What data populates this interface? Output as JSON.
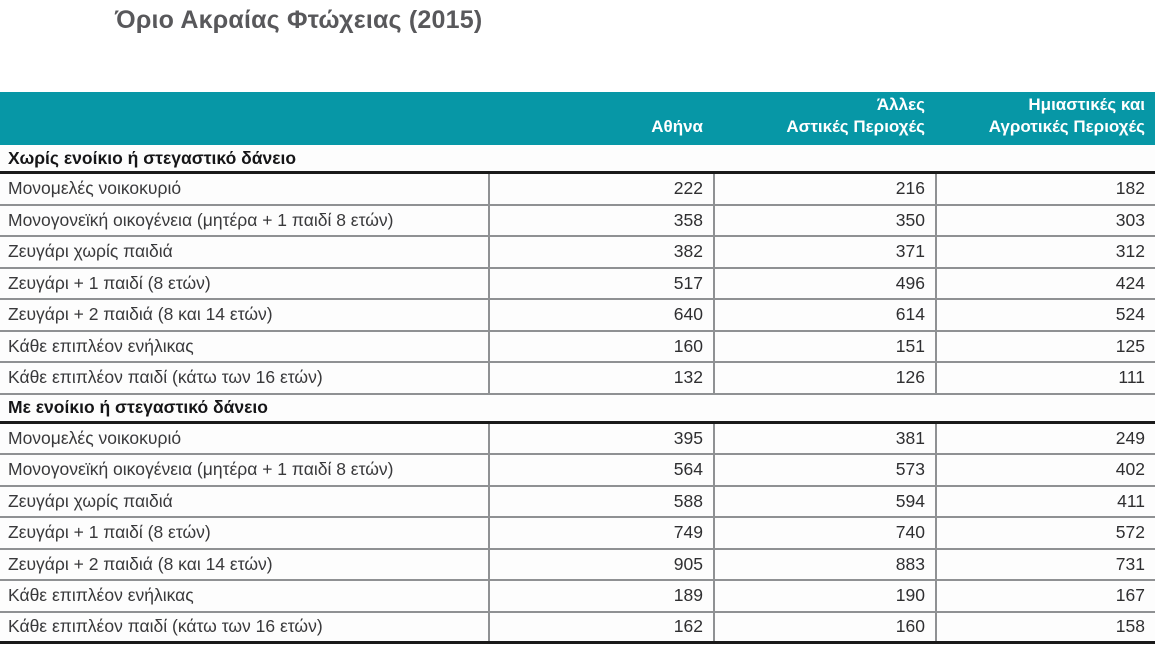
{
  "title": "Όριο Ακραίας Φτώχειας (2015)",
  "colors": {
    "accent_teal": "#0797a6",
    "header_text": "#ffffff",
    "title_text": "#58585b",
    "body_text": "#3e3e40",
    "border_gray": "#8f9193",
    "border_dark": "#1a1a1a"
  },
  "table": {
    "columns": [
      {
        "lines": [
          "Αθήνα"
        ]
      },
      {
        "lines": [
          "Άλλες",
          "Αστικές Περιοχές"
        ]
      },
      {
        "lines": [
          "Ημιαστικές και",
          "Αγροτικές Περιοχές"
        ]
      }
    ],
    "sections": [
      {
        "header": "Χωρίς ενοίκιο ή στεγαστικό δάνειο",
        "rows": [
          {
            "label": "Μονομελές νοικοκυριό",
            "values": [
              "222",
              "216",
              "182"
            ]
          },
          {
            "label": "Μονογονεϊκή οικογένεια (μητέρα + 1 παιδί 8 ετών)",
            "values": [
              "358",
              "350",
              "303"
            ]
          },
          {
            "label": "Ζευγάρι χωρίς παιδιά",
            "values": [
              "382",
              "371",
              "312"
            ]
          },
          {
            "label": "Ζευγάρι + 1 παιδί (8 ετών)",
            "values": [
              "517",
              "496",
              "424"
            ]
          },
          {
            "label": "Ζευγάρι + 2 παιδιά (8 και 14 ετών)",
            "values": [
              "640",
              "614",
              "524"
            ]
          },
          {
            "label": "Κάθε επιπλέον ενήλικας",
            "values": [
              "160",
              "151",
              "125"
            ]
          },
          {
            "label": "Κάθε επιπλέον παιδί (κάτω των 16 ετών)",
            "values": [
              "132",
              "126",
              "111"
            ]
          }
        ]
      },
      {
        "header": "Με ενοίκιο ή στεγαστικό δάνειο",
        "rows": [
          {
            "label": "Μονομελές νοικοκυριό",
            "values": [
              "395",
              "381",
              "249"
            ]
          },
          {
            "label": "Μονογονεϊκή οικογένεια (μητέρα + 1 παιδί 8 ετών)",
            "values": [
              "564",
              "573",
              "402"
            ]
          },
          {
            "label": "Ζευγάρι χωρίς παιδιά",
            "values": [
              "588",
              "594",
              "411"
            ]
          },
          {
            "label": "Ζευγάρι + 1 παιδί (8 ετών)",
            "values": [
              "749",
              "740",
              "572"
            ]
          },
          {
            "label": "Ζευγάρι + 2 παιδιά (8 και 14 ετών)",
            "values": [
              "905",
              "883",
              "731"
            ]
          },
          {
            "label": "Κάθε επιπλέον ενήλικας",
            "values": [
              "189",
              "190",
              "167"
            ]
          },
          {
            "label": "Κάθε επιπλέον παιδί (κάτω των 16 ετών)",
            "values": [
              "162",
              "160",
              "158"
            ]
          }
        ]
      }
    ]
  }
}
